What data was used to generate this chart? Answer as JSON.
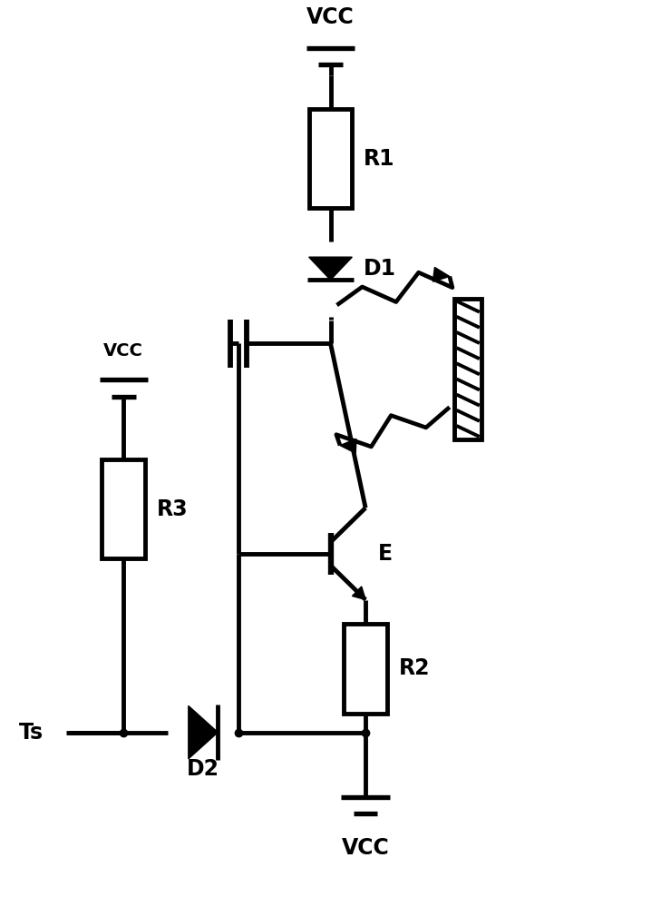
{
  "bg_color": "#ffffff",
  "line_color": "#000000",
  "lw": 3.5,
  "fig_w": 7.29,
  "fig_h": 9.99,
  "vcc_top_label": "VCC",
  "vcc_bot_label": "VCC",
  "vcc_left_label": "VCC",
  "R1_label": "R1",
  "R2_label": "R2",
  "R3_label": "R3",
  "D1_label": "D1",
  "D2_label": "D2",
  "E_label": "E",
  "Ts_label": "Ts"
}
